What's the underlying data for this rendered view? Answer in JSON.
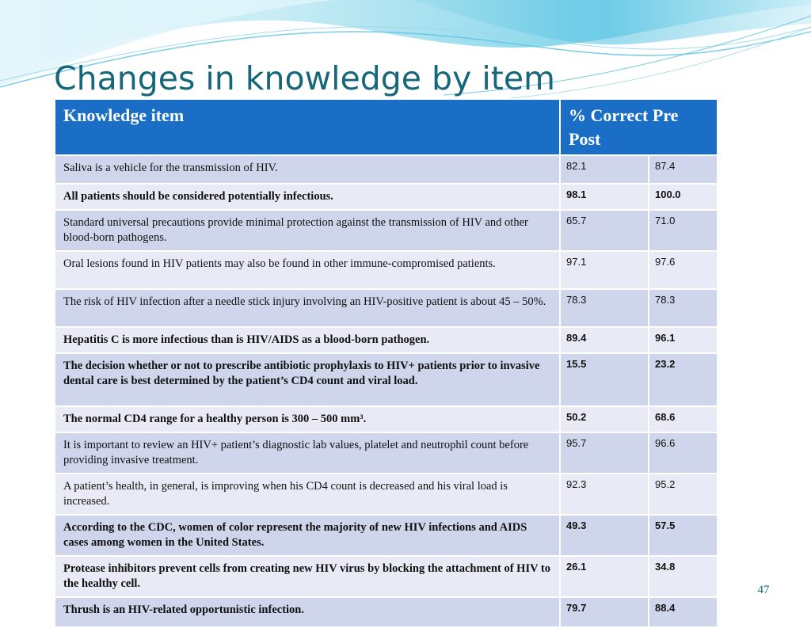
{
  "slide": {
    "title": "Changes in knowledge by item",
    "page_number": "47"
  },
  "table": {
    "headers": {
      "item": "Knowledge item",
      "pre_post": "% Correct Pre Post"
    },
    "rows": [
      {
        "item": "Saliva is a vehicle for the transmission of HIV.",
        "pre": "82.1",
        "post": "87.4",
        "bold": false
      },
      {
        "item": "All patients should be considered potentially infectious.",
        "pre": "98.1",
        "post": "100.0",
        "bold": true
      },
      {
        "item": "Standard universal precautions provide minimal protection against the transmission of HIV and other blood-born pathogens.",
        "pre": "65.7",
        "post": "71.0",
        "bold": false
      },
      {
        "item": "Oral lesions found in HIV patients may also be found in other immune-compromised patients.",
        "pre": "97.1",
        "post": "97.6",
        "bold": false
      },
      {
        "item": "The risk of HIV infection after a needle stick injury involving an HIV-positive patient is about 45 – 50%.",
        "pre": "78.3",
        "post": "78.3",
        "bold": false
      },
      {
        "item": "Hepatitis C is more infectious than is HIV/AIDS as a blood-born pathogen.",
        "pre": "89.4",
        "post": "96.1",
        "bold": true
      },
      {
        "item": "The decision whether or not to prescribe antibiotic prophylaxis to HIV+ patients prior to invasive dental care is best determined by the patient’s CD4 count and viral load.",
        "pre": "15.5",
        "post": "23.2",
        "bold": true
      },
      {
        "item": "The normal CD4 range for a healthy person is 300 – 500 mm³.",
        "pre": "50.2",
        "post": "68.6",
        "bold": true
      },
      {
        "item": "It is important to review an HIV+ patient’s diagnostic lab values, platelet and neutrophil count before providing invasive treatment.",
        "pre": "95.7",
        "post": "96.6",
        "bold": false
      },
      {
        "item": "A patient’s health, in general, is improving when his CD4 count is decreased and his viral load is increased.",
        "pre": "92.3",
        "post": "95.2",
        "bold": false
      },
      {
        "item": "According to the CDC, women of color represent the majority of new HIV infections and AIDS cases among women in the United States.",
        "pre": "49.3",
        "post": "57.5",
        "bold": true
      },
      {
        "item": "Protease inhibitors prevent cells from creating new HIV virus by blocking the attachment of HIV to the healthy cell.",
        "pre": "26.1",
        "post": "34.8",
        "bold": true
      },
      {
        "item": "Thrush is an HIV-related opportunistic infection.",
        "pre": "79.7",
        "post": "88.4",
        "bold": true
      }
    ]
  },
  "colors": {
    "title": "#17677a",
    "header_bg": "#1b6ec6",
    "row_dark": "#cfd5ea",
    "row_light": "#e8ebf5",
    "wave_light": "#bfe9f3",
    "wave_mid": "#7fd3ea",
    "wave_deep": "#4cbfe0"
  }
}
